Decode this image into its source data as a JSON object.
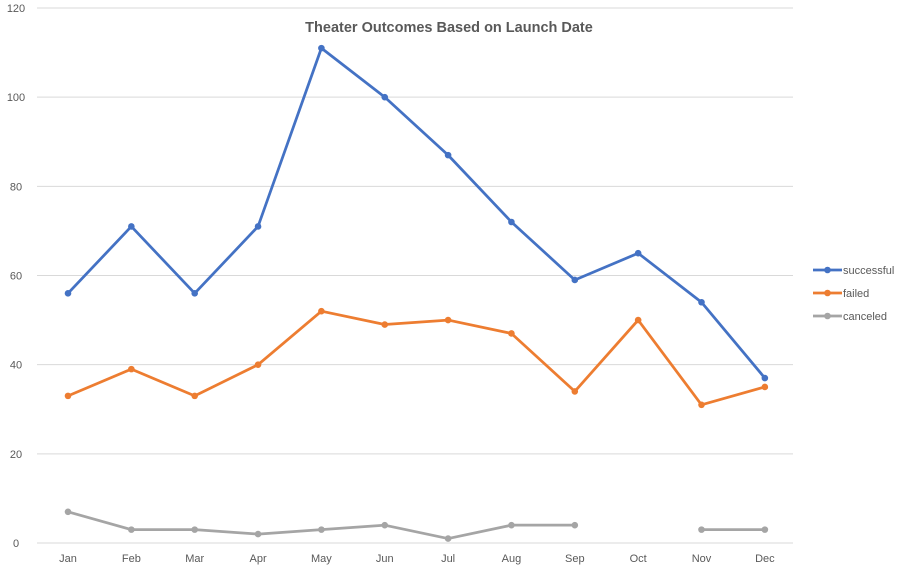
{
  "chart_data": {
    "type": "line",
    "title": "Theater Outcomes Based on Launch Date",
    "xlabel": "",
    "ylabel": "",
    "categories": [
      "Jan",
      "Feb",
      "Mar",
      "Apr",
      "May",
      "Jun",
      "Jul",
      "Aug",
      "Sep",
      "Oct",
      "Nov",
      "Dec"
    ],
    "ylim": [
      0,
      120
    ],
    "yticks": [
      "0",
      "20",
      "40",
      "60",
      "80",
      "100",
      "120"
    ],
    "grid": true,
    "legend_position": "right",
    "series": [
      {
        "name": "successful",
        "color": "#4472c4",
        "values": [
          56,
          71,
          56,
          71,
          111,
          100,
          87,
          72,
          59,
          65,
          54,
          37
        ]
      },
      {
        "name": "failed",
        "color": "#ed7d31",
        "values": [
          33,
          39,
          33,
          40,
          52,
          49,
          50,
          47,
          34,
          50,
          31,
          35
        ]
      },
      {
        "name": "canceled",
        "color": "#a5a5a5",
        "values": [
          7,
          3,
          3,
          2,
          3,
          4,
          1,
          4,
          4,
          null,
          3,
          3
        ]
      }
    ]
  }
}
